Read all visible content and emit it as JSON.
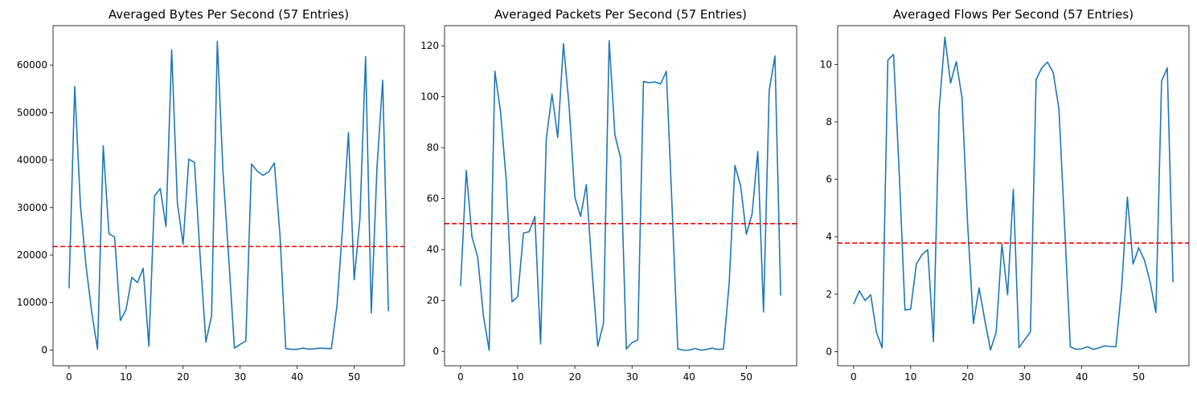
{
  "colors": {
    "line": "#1f77b4",
    "mean": "#ff0000",
    "axes": "#000000"
  },
  "chart_data": [
    {
      "type": "line",
      "title": "Averaged Bytes Per Second (57 Entries)",
      "x": [
        0,
        1,
        2,
        3,
        4,
        5,
        6,
        7,
        8,
        9,
        10,
        11,
        12,
        13,
        14,
        15,
        16,
        17,
        18,
        19,
        20,
        21,
        22,
        23,
        24,
        25,
        26,
        27,
        28,
        29,
        30,
        31,
        32,
        33,
        34,
        35,
        36,
        37,
        38,
        39,
        40,
        41,
        42,
        43,
        44,
        45,
        46,
        47,
        48,
        49,
        50,
        51,
        52,
        53,
        54,
        55,
        56
      ],
      "values": [
        13000,
        55500,
        30500,
        17500,
        7800,
        200,
        43000,
        24500,
        23800,
        6200,
        8500,
        15300,
        14200,
        17200,
        800,
        32500,
        34000,
        26000,
        63200,
        31000,
        22300,
        40200,
        39500,
        19500,
        1700,
        7200,
        65000,
        37500,
        19500,
        400,
        1200,
        1900,
        39200,
        37700,
        36800,
        37500,
        39400,
        24000,
        300,
        150,
        150,
        400,
        200,
        250,
        400,
        350,
        300,
        9500,
        26500,
        45800,
        14800,
        27500,
        61800,
        7800,
        38400,
        56800,
        8200
      ],
      "mean": 21800,
      "xticks": [
        0,
        10,
        20,
        30,
        40,
        50
      ],
      "yticks": [
        0,
        10000,
        20000,
        30000,
        40000,
        50000,
        60000
      ],
      "xlim": [
        -2.8,
        58.8
      ],
      "ylim": [
        -3300,
        68300
      ]
    },
    {
      "type": "line",
      "title": "Averaged Packets Per Second (57 Entries)",
      "x": [
        0,
        1,
        2,
        3,
        4,
        5,
        6,
        7,
        8,
        9,
        10,
        11,
        12,
        13,
        14,
        15,
        16,
        17,
        18,
        19,
        20,
        21,
        22,
        23,
        24,
        25,
        26,
        27,
        28,
        29,
        30,
        31,
        32,
        33,
        34,
        35,
        36,
        37,
        38,
        39,
        40,
        41,
        42,
        43,
        44,
        45,
        46,
        47,
        48,
        49,
        50,
        51,
        52,
        53,
        54,
        55,
        56
      ],
      "values": [
        25.7,
        71,
        45,
        37,
        14,
        0.5,
        110,
        94,
        67,
        19.5,
        21.5,
        46.5,
        47,
        53,
        3,
        83.5,
        101,
        84,
        120.8,
        96,
        60.5,
        53,
        65.5,
        32,
        2,
        11,
        122,
        85,
        76,
        1,
        3.5,
        4.5,
        106,
        105.5,
        105.8,
        105,
        110,
        57,
        1,
        0.5,
        0.5,
        1.2,
        0.5,
        0.8,
        1.3,
        0.8,
        1,
        27,
        73,
        65,
        46,
        54,
        78.5,
        15.5,
        102.5,
        116,
        22
      ],
      "mean": 50.2,
      "xticks": [
        0,
        10,
        20,
        30,
        40,
        50
      ],
      "yticks": [
        0,
        20,
        40,
        60,
        80,
        100,
        120
      ],
      "xlim": [
        -2.8,
        58.8
      ],
      "ylim": [
        -5.6,
        127.9
      ]
    },
    {
      "type": "line",
      "title": "Averaged Flows Per Second (57 Entries)",
      "x": [
        0,
        1,
        2,
        3,
        4,
        5,
        6,
        7,
        8,
        9,
        10,
        11,
        12,
        13,
        14,
        15,
        16,
        17,
        18,
        19,
        20,
        21,
        22,
        23,
        24,
        25,
        26,
        27,
        28,
        29,
        30,
        31,
        32,
        33,
        34,
        35,
        36,
        37,
        38,
        39,
        40,
        41,
        42,
        43,
        44,
        45,
        46,
        47,
        48,
        49,
        50,
        51,
        52,
        53,
        54,
        55,
        56
      ],
      "values": [
        1.65,
        2.12,
        1.78,
        1.98,
        0.68,
        0.13,
        10.15,
        10.35,
        6.2,
        1.45,
        1.48,
        3.05,
        3.38,
        3.55,
        0.35,
        8.45,
        10.95,
        9.35,
        10.1,
        8.85,
        4.4,
        0.98,
        2.22,
        1.1,
        0.06,
        0.68,
        3.75,
        1.98,
        5.65,
        0.14,
        0.42,
        0.68,
        9.48,
        9.88,
        10.08,
        9.72,
        8.45,
        4.35,
        0.17,
        0.08,
        0.1,
        0.17,
        0.08,
        0.13,
        0.2,
        0.18,
        0.17,
        2.25,
        5.38,
        3.05,
        3.62,
        3.18,
        2.42,
        1.36,
        9.42,
        9.88,
        2.42
      ],
      "mean": 3.78,
      "xticks": [
        0,
        10,
        20,
        30,
        40,
        50
      ],
      "yticks": [
        0,
        2,
        4,
        6,
        8,
        10
      ],
      "xlim": [
        -2.8,
        58.8
      ],
      "ylim": [
        -0.49,
        11.35
      ]
    }
  ]
}
